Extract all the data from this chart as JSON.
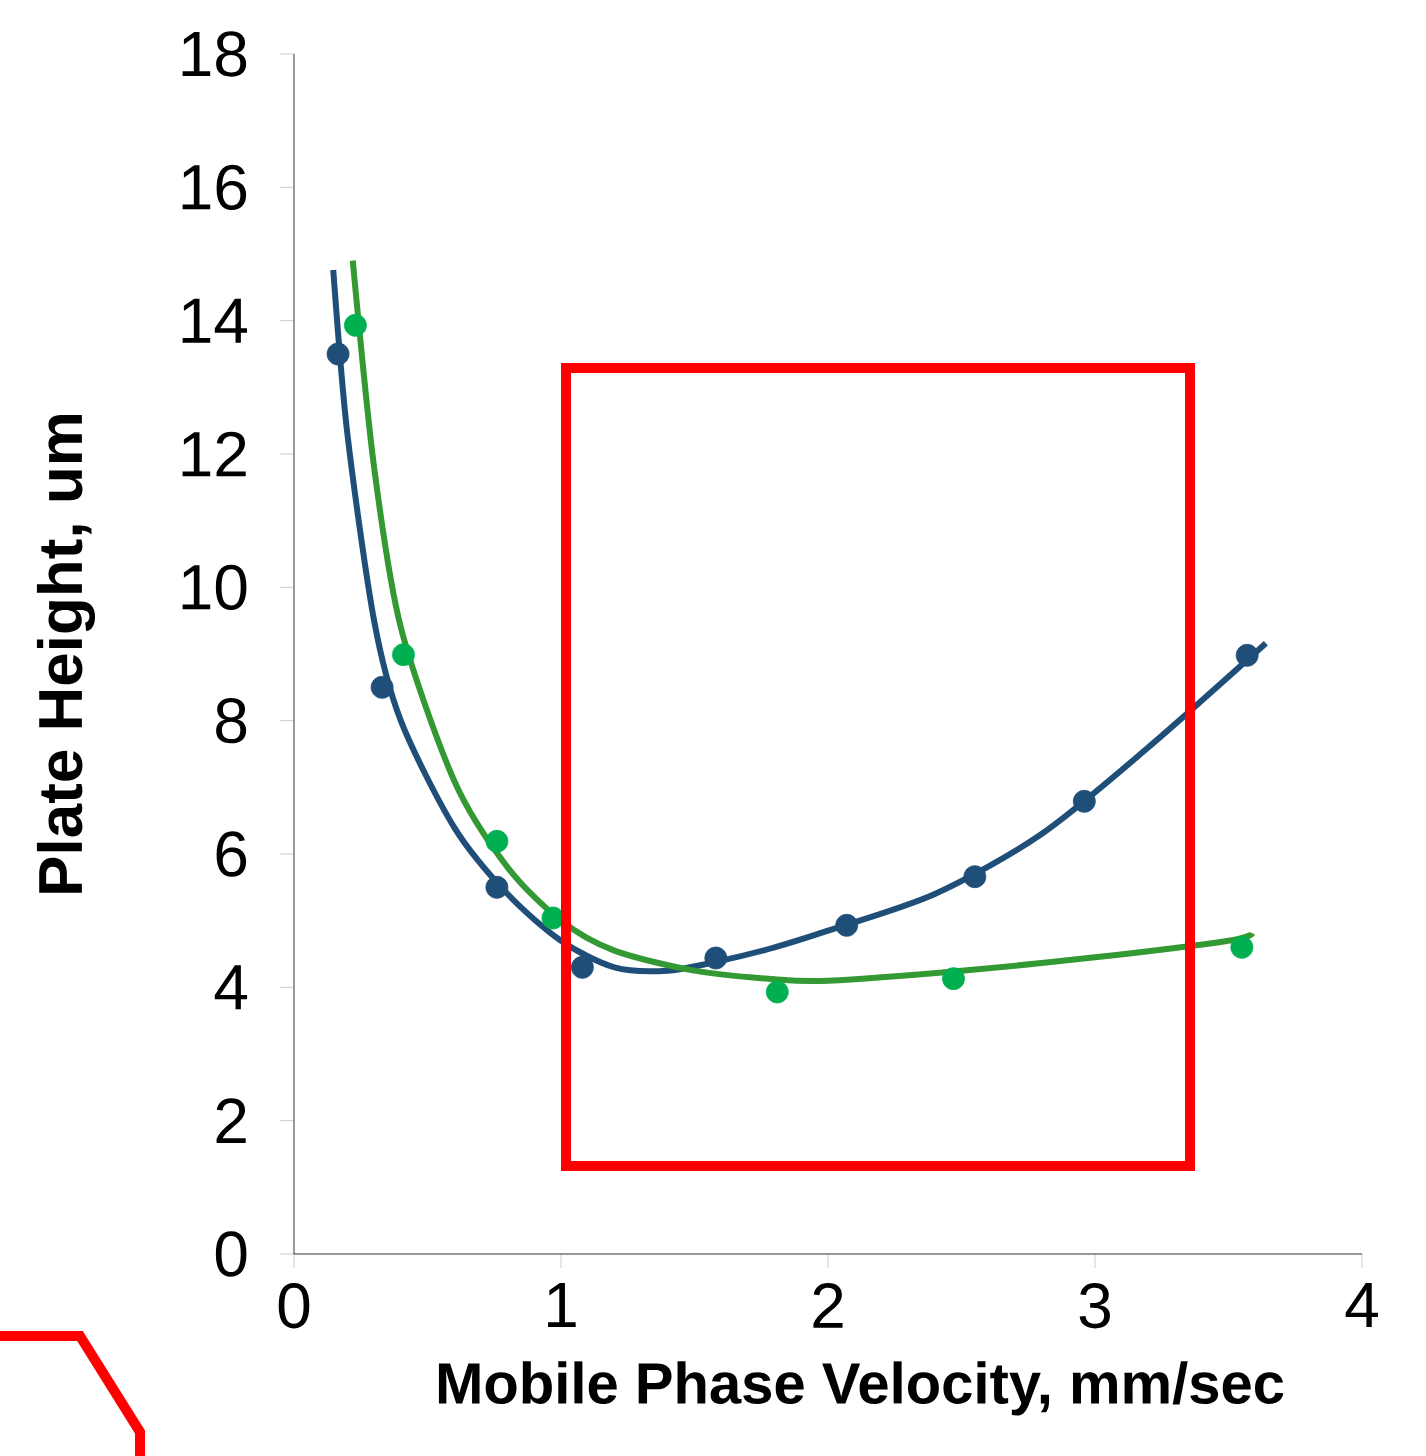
{
  "chart_data": {
    "type": "scatter",
    "xlabel": "Mobile  Phase Velocity, mm/sec",
    "ylabel": "Plate Height, um",
    "xlim": [
      0,
      4
    ],
    "xticks": [
      0,
      1,
      2,
      3,
      4
    ],
    "ylim": [
      0,
      18
    ],
    "yticks": [
      0,
      2,
      4,
      6,
      8,
      10,
      12,
      14,
      16,
      18
    ],
    "series": [
      {
        "marker": "circle",
        "color": "#1f4e79",
        "x": [
          0.165,
          0.33,
          0.76,
          1.08,
          1.58,
          2.07,
          2.55,
          2.96,
          3.57
        ],
        "values": [
          13.5,
          8.5,
          5.5,
          4.3,
          4.44,
          4.93,
          5.66,
          6.79,
          8.98
        ]
      },
      {
        "marker": "circle",
        "color": "#00b050",
        "x": [
          0.23,
          0.41,
          0.76,
          0.97,
          1.81,
          2.47,
          3.55
        ],
        "values": [
          13.93,
          8.99,
          6.19,
          5.04,
          3.93,
          4.13,
          4.6
        ]
      },
      {
        "type": "line",
        "marker": "none",
        "color": "#1f4e79",
        "x": [
          0.147,
          0.2,
          0.3,
          0.4,
          0.6,
          0.8,
          1.0,
          1.2,
          1.4,
          1.6,
          1.8,
          2.0,
          2.4,
          2.8,
          3.2,
          3.64
        ],
        "values": [
          14.76,
          12.3,
          9.5,
          8.0,
          6.4,
          5.4,
          4.7,
          4.3,
          4.25,
          4.4,
          4.6,
          4.85,
          5.4,
          6.3,
          7.6,
          9.16
        ]
      },
      {
        "type": "line",
        "marker": "none",
        "color": "#339933",
        "x": [
          0.22,
          0.3,
          0.4,
          0.6,
          0.8,
          1.0,
          1.2,
          1.5,
          1.8,
          2.0,
          2.5,
          3.0,
          3.5,
          3.59
        ],
        "values": [
          14.9,
          11.8,
          9.4,
          7.1,
          5.8,
          5.0,
          4.55,
          4.25,
          4.12,
          4.1,
          4.25,
          4.45,
          4.7,
          4.81
        ]
      }
    ]
  }
}
